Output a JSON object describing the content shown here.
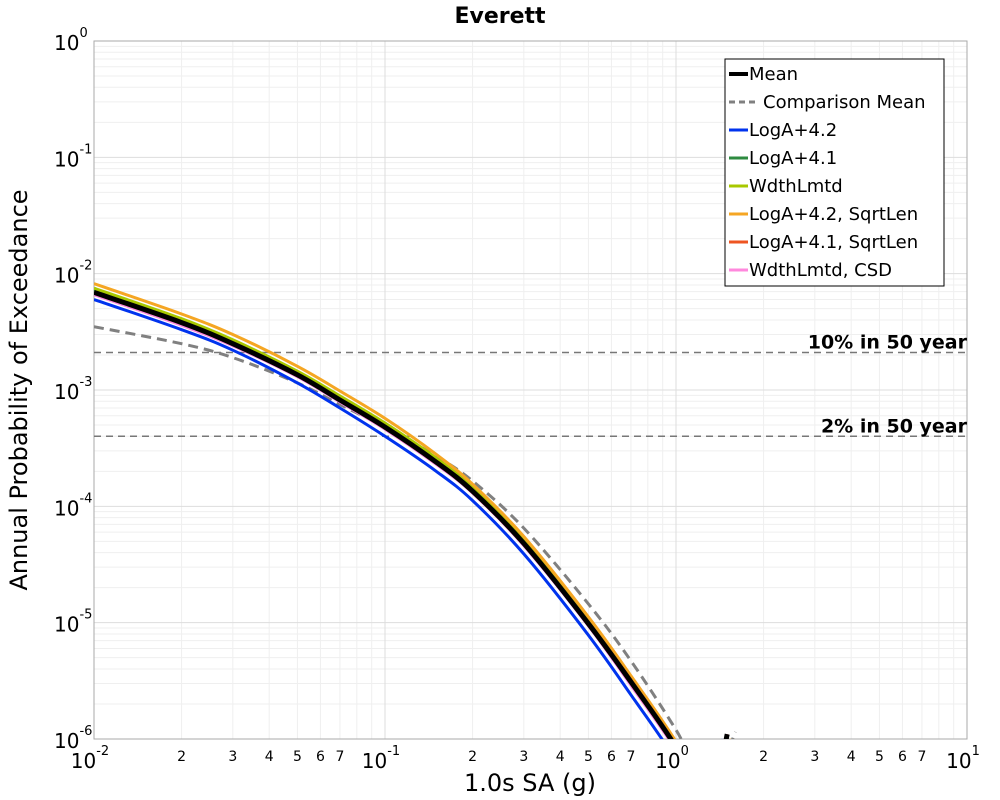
{
  "chart_data": {
    "type": "line",
    "title": "Everett",
    "xlabel": "1.0s SA (g)",
    "ylabel": "Annual Probability of Exceedance",
    "xscale": "log",
    "yscale": "log",
    "xlim": [
      0.01,
      10
    ],
    "ylim": [
      1e-06,
      1
    ],
    "grid": true,
    "legend_position": "top-right",
    "x_major_ticks": [
      {
        "value": 0.01,
        "base": "10",
        "exp": "-2"
      },
      {
        "value": 0.1,
        "base": "10",
        "exp": "-1"
      },
      {
        "value": 1,
        "base": "10",
        "exp": "0"
      },
      {
        "value": 10,
        "base": "10",
        "exp": "1"
      }
    ],
    "y_major_ticks": [
      {
        "value": 1,
        "base": "10",
        "exp": "0"
      },
      {
        "value": 0.1,
        "base": "10",
        "exp": "-1"
      },
      {
        "value": 0.01,
        "base": "10",
        "exp": "-2"
      },
      {
        "value": 0.001,
        "base": "10",
        "exp": "-3"
      },
      {
        "value": 0.0001,
        "base": "10",
        "exp": "-4"
      },
      {
        "value": 1e-05,
        "base": "10",
        "exp": "-5"
      },
      {
        "value": 1e-06,
        "base": "10",
        "exp": "-6"
      }
    ],
    "x_minor_labels": [
      "2",
      "3",
      "4",
      "5",
      "6",
      "7"
    ],
    "reference_lines": [
      {
        "label": "10% in 50 year",
        "y": 0.0021
      },
      {
        "label": "2% in 50 year",
        "y": 0.0004
      }
    ],
    "series": [
      {
        "name": "Mean",
        "color": "#000000",
        "dash": "solid",
        "x": [
          0.01,
          0.02,
          0.03,
          0.05,
          0.07,
          0.1,
          0.15,
          0.2,
          0.3,
          0.5,
          0.7,
          1.0,
          1.3,
          1.5
        ],
        "y": [
          0.0069,
          0.0038,
          0.0025,
          0.00135,
          0.00082,
          0.00048,
          0.00024,
          0.000135,
          4.8e-05,
          9.8e-06,
          3.1e-06,
          8.5e-07,
          2.5e-07,
          1.1e-06
        ]
      },
      {
        "name": "Comparison Mean",
        "color": "#808080",
        "dash": "dashed",
        "x": [
          0.01,
          0.02,
          0.03,
          0.05,
          0.07,
          0.1,
          0.15,
          0.2,
          0.3,
          0.5,
          0.7,
          1.0,
          1.3,
          1.6
        ],
        "y": [
          0.0035,
          0.0025,
          0.0019,
          0.00115,
          0.00075,
          0.00048,
          0.00027,
          0.000165,
          6.5e-05,
          1.45e-05,
          4.7e-06,
          1.2e-06,
          3.9e-07,
          1.15e-06
        ]
      },
      {
        "name": "LogA+4.2",
        "color": "#0033ee",
        "dash": "solid",
        "x": [
          0.01,
          0.02,
          0.03,
          0.05,
          0.07,
          0.1,
          0.15,
          0.2,
          0.3,
          0.5,
          0.7,
          1.0,
          1.3,
          1.45
        ],
        "y": [
          0.006,
          0.0033,
          0.0022,
          0.00115,
          0.0007,
          0.0004,
          0.0002,
          0.000112,
          3.9e-05,
          7.8e-06,
          2.4e-06,
          6.5e-07,
          1.8e-07,
          1e-06
        ]
      },
      {
        "name": "LogA+4.1",
        "color": "#2e8b40",
        "dash": "solid",
        "x": [
          0.01,
          0.02,
          0.03,
          0.05,
          0.07,
          0.1,
          0.15,
          0.2,
          0.3,
          0.5,
          0.7,
          1.0,
          1.3,
          1.5
        ],
        "y": [
          0.0072,
          0.0039,
          0.0026,
          0.0014,
          0.00086,
          0.0005,
          0.00025,
          0.00014,
          5e-05,
          1.02e-05,
          3.2e-06,
          8.8e-07,
          2.6e-07,
          1.1e-06
        ]
      },
      {
        "name": "WdthLmtd",
        "color": "#a8c800",
        "dash": "solid",
        "x": [
          0.01,
          0.02,
          0.03,
          0.05,
          0.07,
          0.1,
          0.15,
          0.2,
          0.3,
          0.5,
          0.7,
          1.0,
          1.3,
          1.5
        ],
        "y": [
          0.0075,
          0.0041,
          0.0027,
          0.00145,
          0.00089,
          0.00052,
          0.00026,
          0.000145,
          5.2e-05,
          1.06e-05,
          3.3e-06,
          9e-07,
          2.7e-07,
          1.1e-06
        ]
      },
      {
        "name": "LogA+4.2, SqrtLen",
        "color": "#f5a623",
        "dash": "solid",
        "x": [
          0.01,
          0.02,
          0.03,
          0.05,
          0.07,
          0.1,
          0.15,
          0.2,
          0.3,
          0.5,
          0.7,
          1.0,
          1.3,
          1.55
        ],
        "y": [
          0.0082,
          0.0045,
          0.003,
          0.0016,
          0.00098,
          0.00057,
          0.00028,
          0.000155,
          5.5e-05,
          1.12e-05,
          3.5e-06,
          9.5e-07,
          2.9e-07,
          1e-06
        ]
      },
      {
        "name": "LogA+4.1, SqrtLen",
        "color": "#ee5522",
        "dash": "solid",
        "x": [
          0.01,
          0.02,
          0.03,
          0.05,
          0.07,
          0.1,
          0.15,
          0.2,
          0.3,
          0.5,
          0.7,
          1.0,
          1.3,
          1.5
        ],
        "y": [
          0.0068,
          0.0037,
          0.0025,
          0.00134,
          0.00081,
          0.00047,
          0.000235,
          0.000132,
          4.7e-05,
          9.6e-06,
          3e-06,
          8.3e-07,
          2.5e-07,
          1.1e-06
        ]
      },
      {
        "name": "WdthLmtd, CSD",
        "color": "#ff88dd",
        "dash": "solid",
        "x": [
          0.01,
          0.02,
          0.03,
          0.05,
          0.07,
          0.1,
          0.15,
          0.2,
          0.3,
          0.5,
          0.7,
          1.0,
          1.3,
          1.5
        ],
        "y": [
          0.0066,
          0.0036,
          0.0024,
          0.0013,
          0.00079,
          0.00046,
          0.00023,
          0.00013,
          4.6e-05,
          9.4e-06,
          2.9e-06,
          8e-07,
          2.4e-07,
          1.1e-06
        ]
      }
    ]
  }
}
